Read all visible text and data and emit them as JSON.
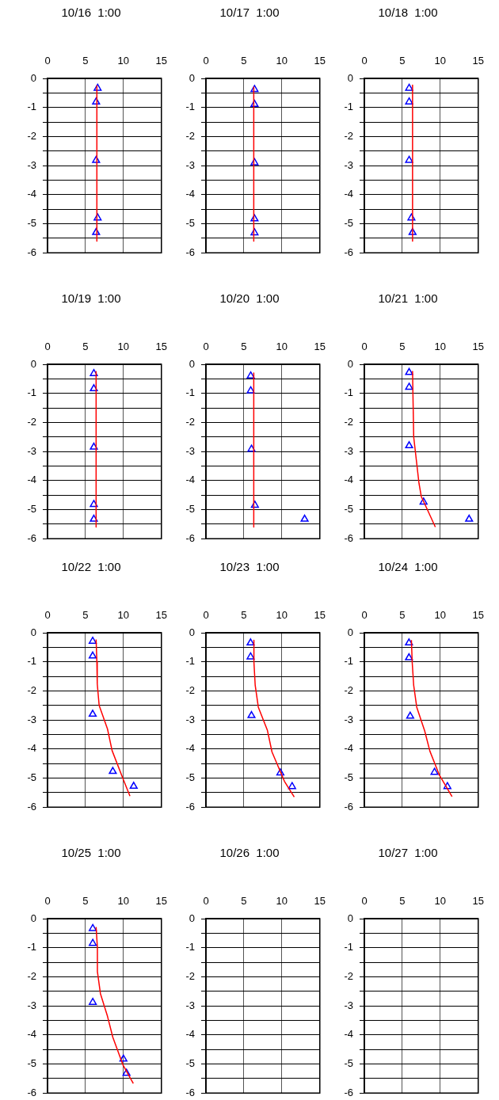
{
  "chart_data": [
    {
      "type": "scatter",
      "title": "10/16  1:00",
      "xlim": [
        0,
        15
      ],
      "ylim": [
        -6,
        0
      ],
      "xticks": [
        0,
        5,
        10,
        15
      ],
      "yticks": [
        0,
        {
          "value": -0.5,
          "label": null
        },
        -1,
        {
          "value": -1.5,
          "label": null
        },
        -2,
        {
          "value": -2.5,
          "label": null
        },
        -3,
        {
          "value": -3.5,
          "label": null
        },
        -4,
        {
          "value": -4.5,
          "label": null
        },
        -5,
        {
          "value": -5.5,
          "label": null
        },
        -6
      ],
      "grid": true,
      "legend": false,
      "series": [
        {
          "type": "line",
          "marker": "none",
          "color": "#ff0000",
          "x": [
            6.5,
            6.5
          ],
          "values": [
            -0.25,
            -5.6
          ]
        },
        {
          "marker": "triangle",
          "color": "#0000ff",
          "x": [
            6.6,
            6.4,
            6.4,
            6.6,
            6.4
          ],
          "values": [
            -0.34,
            -0.81,
            -2.82,
            -4.8,
            -5.3
          ]
        }
      ]
    },
    {
      "type": "scatter",
      "title": "10/17  1:00",
      "xlim": [
        0,
        15
      ],
      "ylim": [
        -6,
        0
      ],
      "xticks": [
        0,
        5,
        10,
        15
      ],
      "yticks": [
        0,
        {
          "value": -0.5,
          "label": null
        },
        -1,
        {
          "value": -1.5,
          "label": null
        },
        -2,
        {
          "value": -2.5,
          "label": null
        },
        -3,
        {
          "value": -3.5,
          "label": null
        },
        -4,
        {
          "value": -4.5,
          "label": null
        },
        -5,
        {
          "value": -5.5,
          "label": null
        },
        -6
      ],
      "grid": true,
      "legend": false,
      "series": [
        {
          "type": "line",
          "marker": "none",
          "color": "#ff0000",
          "x": [
            6.3,
            6.3
          ],
          "values": [
            -0.3,
            -5.6
          ]
        },
        {
          "marker": "triangle",
          "color": "#0000ff",
          "x": [
            6.4,
            6.4,
            6.4,
            6.4,
            6.4
          ],
          "values": [
            -0.38,
            -0.89,
            -2.9,
            -4.83,
            -5.31
          ]
        }
      ]
    },
    {
      "type": "scatter",
      "title": "10/18  1:00",
      "xlim": [
        0,
        15
      ],
      "ylim": [
        -6,
        0
      ],
      "xticks": [
        0,
        5,
        10,
        15
      ],
      "yticks": [
        0,
        {
          "value": -0.5,
          "label": null
        },
        -1,
        {
          "value": -1.5,
          "label": null
        },
        -2,
        {
          "value": -2.5,
          "label": null
        },
        -3,
        {
          "value": -3.5,
          "label": null
        },
        -4,
        {
          "value": -4.5,
          "label": null
        },
        -5,
        {
          "value": -5.5,
          "label": null
        },
        -6
      ],
      "grid": true,
      "legend": false,
      "series": [
        {
          "type": "line",
          "marker": "none",
          "color": "#ff0000",
          "x": [
            6.35,
            6.35
          ],
          "values": [
            -0.23,
            -5.6
          ]
        },
        {
          "marker": "triangle",
          "color": "#0000ff",
          "x": [
            5.9,
            5.9,
            5.9,
            6.2,
            6.35
          ],
          "values": [
            -0.34,
            -0.81,
            -2.82,
            -4.8,
            -5.3
          ]
        }
      ]
    },
    {
      "type": "scatter",
      "title": "10/19  1:00",
      "xlim": [
        0,
        15
      ],
      "ylim": [
        -6,
        0
      ],
      "xticks": [
        0,
        5,
        10,
        15
      ],
      "yticks": [
        0,
        {
          "value": -0.5,
          "label": null
        },
        -1,
        {
          "value": -1.5,
          "label": null
        },
        -2,
        {
          "value": -2.5,
          "label": null
        },
        -3,
        {
          "value": -3.5,
          "label": null
        },
        -4,
        {
          "value": -4.5,
          "label": null
        },
        -5,
        {
          "value": -5.5,
          "label": null
        },
        -6
      ],
      "grid": true,
      "legend": false,
      "series": [
        {
          "type": "line",
          "marker": "none",
          "color": "#ff0000",
          "x": [
            6.4,
            6.4
          ],
          "values": [
            -0.25,
            -5.6
          ]
        },
        {
          "marker": "triangle",
          "color": "#0000ff",
          "x": [
            6.1,
            6.1,
            6.1,
            6.1,
            6.1
          ],
          "values": [
            -0.32,
            -0.84,
            -2.85,
            -4.82,
            -5.33
          ]
        }
      ]
    },
    {
      "type": "scatter",
      "title": "10/20  1:00",
      "xlim": [
        0,
        15
      ],
      "ylim": [
        -6,
        0
      ],
      "xticks": [
        0,
        5,
        10,
        15
      ],
      "yticks": [
        0,
        {
          "value": -0.5,
          "label": null
        },
        -1,
        {
          "value": -1.5,
          "label": null
        },
        -2,
        {
          "value": -2.5,
          "label": null
        },
        -3,
        {
          "value": -3.5,
          "label": null
        },
        -4,
        {
          "value": -4.5,
          "label": null
        },
        -5,
        {
          "value": -5.5,
          "label": null
        },
        -6
      ],
      "grid": true,
      "legend": false,
      "series": [
        {
          "type": "line",
          "marker": "none",
          "color": "#ff0000",
          "x": [
            6.3,
            6.3
          ],
          "values": [
            -0.3,
            -5.6
          ]
        },
        {
          "marker": "triangle",
          "color": "#0000ff",
          "x": [
            5.9,
            5.9,
            6.0,
            6.45,
            13.0
          ],
          "values": [
            -0.4,
            -0.91,
            -2.92,
            -4.85,
            -5.33
          ]
        }
      ]
    },
    {
      "type": "scatter",
      "title": "10/21  1:00",
      "xlim": [
        0,
        15
      ],
      "ylim": [
        -6,
        0
      ],
      "xticks": [
        0,
        5,
        10,
        15
      ],
      "yticks": [
        0,
        {
          "value": -0.5,
          "label": null
        },
        -1,
        {
          "value": -1.5,
          "label": null
        },
        -2,
        {
          "value": -2.5,
          "label": null
        },
        -3,
        {
          "value": -3.5,
          "label": null
        },
        -4,
        {
          "value": -4.5,
          "label": null
        },
        -5,
        {
          "value": -5.5,
          "label": null
        },
        -6
      ],
      "grid": true,
      "legend": false,
      "series": [
        {
          "type": "line",
          "marker": "none",
          "color": "#ff0000",
          "x": [
            6.35,
            6.4,
            6.5,
            7.2,
            7.5,
            8.3,
            9.35
          ],
          "values": [
            -0.23,
            -1.0,
            -2.5,
            -4.1,
            -4.55,
            -5.0,
            -5.6
          ]
        },
        {
          "marker": "triangle",
          "color": "#0000ff",
          "x": [
            5.9,
            5.9,
            5.9,
            7.8,
            13.8
          ],
          "values": [
            -0.28,
            -0.79,
            -2.8,
            -4.74,
            -5.33
          ]
        }
      ]
    },
    {
      "type": "scatter",
      "title": "10/22  1:00",
      "xlim": [
        0,
        15
      ],
      "ylim": [
        -6,
        0
      ],
      "xticks": [
        0,
        5,
        10,
        15
      ],
      "yticks": [
        0,
        {
          "value": -0.5,
          "label": null
        },
        -1,
        {
          "value": -1.5,
          "label": null
        },
        -2,
        {
          "value": -2.5,
          "label": null
        },
        -3,
        {
          "value": -3.5,
          "label": null
        },
        -4,
        {
          "value": -4.5,
          "label": null
        },
        -5,
        {
          "value": -5.5,
          "label": null
        },
        -6
      ],
      "grid": true,
      "legend": false,
      "series": [
        {
          "type": "line",
          "marker": "none",
          "color": "#ff0000",
          "x": [
            6.4,
            6.5,
            6.55,
            6.8,
            7.9,
            8.5,
            9.95,
            10.86
          ],
          "values": [
            -0.23,
            -1.0,
            -1.75,
            -2.5,
            -3.31,
            -4.05,
            -5.03,
            -5.62
          ]
        },
        {
          "marker": "triangle",
          "color": "#0000ff",
          "x": [
            5.95,
            5.95,
            5.95,
            8.6,
            11.35
          ],
          "values": [
            -0.29,
            -0.8,
            -2.8,
            -4.77,
            -5.28
          ]
        }
      ]
    },
    {
      "type": "scatter",
      "title": "10/23  1:00",
      "xlim": [
        0,
        15
      ],
      "ylim": [
        -6,
        0
      ],
      "xticks": [
        0,
        5,
        10,
        15
      ],
      "yticks": [
        0,
        {
          "value": -0.5,
          "label": null
        },
        -1,
        {
          "value": -1.5,
          "label": null
        },
        -2,
        {
          "value": -2.5,
          "label": null
        },
        -3,
        {
          "value": -3.5,
          "label": null
        },
        -4,
        {
          "value": -4.5,
          "label": null
        },
        -5,
        {
          "value": -5.5,
          "label": null
        },
        -6
      ],
      "grid": true,
      "legend": false,
      "series": [
        {
          "type": "line",
          "marker": "none",
          "color": "#ff0000",
          "x": [
            6.32,
            6.32,
            6.49,
            6.9,
            8.1,
            8.7,
            10.34,
            11.63
          ],
          "values": [
            -0.26,
            -1.0,
            -1.81,
            -2.56,
            -3.36,
            -4.1,
            -5.11,
            -5.65
          ]
        },
        {
          "marker": "triangle",
          "color": "#0000ff",
          "x": [
            5.88,
            5.88,
            6.0,
            9.8,
            11.35
          ],
          "values": [
            -0.35,
            -0.83,
            -2.85,
            -4.82,
            -5.29
          ]
        }
      ]
    },
    {
      "type": "scatter",
      "title": "10/24  1:00",
      "xlim": [
        0,
        15
      ],
      "ylim": [
        -6,
        0
      ],
      "xticks": [
        0,
        5,
        10,
        15
      ],
      "yticks": [
        0,
        {
          "value": -0.5,
          "label": null
        },
        -1,
        {
          "value": -1.5,
          "label": null
        },
        -2,
        {
          "value": -2.5,
          "label": null
        },
        -3,
        {
          "value": -3.5,
          "label": null
        },
        -4,
        {
          "value": -4.5,
          "label": null
        },
        -5,
        {
          "value": -5.5,
          "label": null
        },
        -6
      ],
      "grid": true,
      "legend": false,
      "series": [
        {
          "type": "line",
          "marker": "none",
          "color": "#ff0000",
          "x": [
            6.2,
            6.3,
            6.5,
            6.9,
            7.95,
            8.63,
            9.85,
            11.55
          ],
          "values": [
            -0.25,
            -1.0,
            -1.81,
            -2.56,
            -3.38,
            -4.07,
            -4.88,
            -5.64
          ]
        },
        {
          "marker": "triangle",
          "color": "#0000ff",
          "x": [
            5.88,
            5.88,
            6.04,
            9.24,
            10.94
          ],
          "values": [
            -0.35,
            -0.86,
            -2.87,
            -4.8,
            -5.29
          ]
        }
      ]
    },
    {
      "type": "scatter",
      "title": "10/25  1:00",
      "xlim": [
        0,
        15
      ],
      "ylim": [
        -6,
        0
      ],
      "xticks": [
        0,
        5,
        10,
        15
      ],
      "yticks": [
        0,
        {
          "value": -0.5,
          "label": null
        },
        -1,
        {
          "value": -1.5,
          "label": null
        },
        -2,
        {
          "value": -2.5,
          "label": null
        },
        -3,
        {
          "value": -3.5,
          "label": null
        },
        -4,
        {
          "value": -4.5,
          "label": null
        },
        -5,
        {
          "value": -5.5,
          "label": null
        },
        -6
      ],
      "grid": true,
      "legend": false,
      "series": [
        {
          "type": "line",
          "marker": "none",
          "color": "#ff0000",
          "x": [
            6.4,
            6.57,
            6.57,
            6.97,
            7.9,
            8.6,
            9.93,
            11.3
          ],
          "values": [
            -0.29,
            -1.0,
            -1.82,
            -2.58,
            -3.36,
            -4.08,
            -5.03,
            -5.67
          ]
        },
        {
          "marker": "triangle",
          "color": "#0000ff",
          "x": [
            5.96,
            5.96,
            5.96,
            10.0,
            10.4
          ],
          "values": [
            -0.34,
            -0.85,
            -2.88,
            -4.83,
            -5.32
          ]
        }
      ]
    },
    {
      "type": "scatter",
      "title": "10/26  1:00",
      "xlim": [
        0,
        15
      ],
      "ylim": [
        -6,
        0
      ],
      "xticks": [
        0,
        5,
        10,
        15
      ],
      "yticks": [
        0,
        {
          "value": -0.5,
          "label": null
        },
        -1,
        {
          "value": -1.5,
          "label": null
        },
        -2,
        {
          "value": -2.5,
          "label": null
        },
        -3,
        {
          "value": -3.5,
          "label": null
        },
        -4,
        {
          "value": -4.5,
          "label": null
        },
        -5,
        {
          "value": -5.5,
          "label": null
        },
        -6
      ],
      "grid": true,
      "legend": false
    },
    {
      "type": "scatter",
      "title": "10/27  1:00",
      "xlim": [
        0,
        15
      ],
      "ylim": [
        -6,
        0
      ],
      "xticks": [
        0,
        5,
        10,
        15
      ],
      "yticks": [
        0,
        {
          "value": -0.5,
          "label": null
        },
        -1,
        {
          "value": -1.5,
          "label": null
        },
        -2,
        {
          "value": -2.5,
          "label": null
        },
        -3,
        {
          "value": -3.5,
          "label": null
        },
        -4,
        {
          "value": -4.5,
          "label": null
        },
        -5,
        {
          "value": -5.5,
          "label": null
        },
        -6
      ],
      "grid": true,
      "legend": false
    }
  ]
}
